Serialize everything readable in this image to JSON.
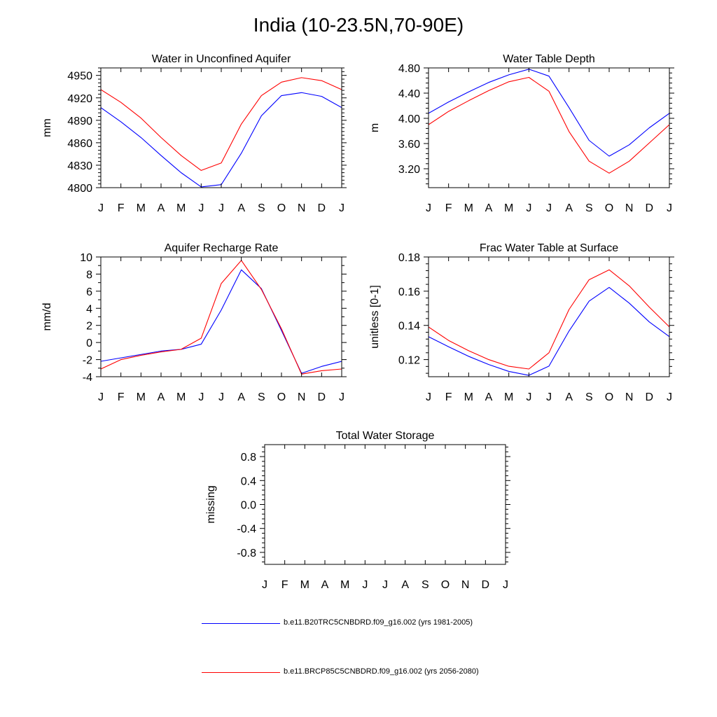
{
  "figure": {
    "title": "India (10-23.5N,70-90E)",
    "legend": [
      {
        "label": "b.e11.B20TRC5CNBDRD.f09_g16.002 (yrs 1981-2005)",
        "color": "#0000ff"
      },
      {
        "label": "b.e11.BRCP85C5CNBDRD.f09_g16.002 (yrs 2056-2080)",
        "color": "#ff0000"
      }
    ]
  },
  "chart_data": [
    {
      "type": "line",
      "title": "Water in Unconfined Aquifer",
      "xlabel": "",
      "ylabel": "mm",
      "categories": [
        "J",
        "F",
        "M",
        "A",
        "M",
        "J",
        "J",
        "A",
        "S",
        "O",
        "N",
        "D",
        "J"
      ],
      "ylim": [
        4800,
        4960
      ],
      "yticks": [
        4800,
        4830,
        4860,
        4890,
        4920,
        4950
      ],
      "yticklabels": [
        "4800",
        "4830",
        "4860",
        "4890",
        "4920",
        "4950"
      ],
      "yminor": 5,
      "series": [
        {
          "name": "b.e11.B20TRC5CNBDRD.f09_g16.002 (yrs 1981-2005)",
          "color": "#0000ff",
          "values": [
            4907,
            4888,
            4867,
            4843,
            4820,
            4801,
            4804,
            4846,
            4896,
            4923,
            4927,
            4922,
            4907
          ]
        },
        {
          "name": "b.e11.BRCP85C5CNBDRD.f09_g16.002 (yrs 2056-2080)",
          "color": "#ff0000",
          "values": [
            4931,
            4914,
            4893,
            4867,
            4843,
            4823,
            4833,
            4885,
            4923,
            4941,
            4947,
            4943,
            4931
          ]
        }
      ]
    },
    {
      "type": "line",
      "title": "Water Table Depth",
      "xlabel": "",
      "ylabel": "m",
      "categories": [
        "J",
        "F",
        "M",
        "A",
        "M",
        "J",
        "J",
        "A",
        "S",
        "O",
        "N",
        "D",
        "J"
      ],
      "ylim": [
        2.9,
        4.8
      ],
      "yticks": [
        3.2,
        3.6,
        4.0,
        4.4,
        4.8
      ],
      "yticklabels": [
        "3.20",
        "3.60",
        "4.00",
        "4.40",
        "4.80"
      ],
      "yminor": 4,
      "series": [
        {
          "name": "b.e11.B20TRC5CNBDRD.f09_g16.002 (yrs 1981-2005)",
          "color": "#0000ff",
          "values": [
            4.08,
            4.26,
            4.42,
            4.57,
            4.69,
            4.78,
            4.67,
            4.17,
            3.65,
            3.4,
            3.58,
            3.85,
            4.08
          ]
        },
        {
          "name": "b.e11.BRCP85C5CNBDRD.f09_g16.002 (yrs 2056-2080)",
          "color": "#ff0000",
          "values": [
            3.9,
            4.11,
            4.28,
            4.44,
            4.58,
            4.65,
            4.43,
            3.79,
            3.32,
            3.13,
            3.32,
            3.61,
            3.9
          ]
        }
      ]
    },
    {
      "type": "line",
      "title": "Aquifer Recharge Rate",
      "xlabel": "",
      "ylabel": "mm/d",
      "categories": [
        "J",
        "F",
        "M",
        "A",
        "M",
        "J",
        "J",
        "A",
        "S",
        "O",
        "N",
        "D",
        "J"
      ],
      "ylim": [
        -4,
        10
      ],
      "yticks": [
        -4,
        -2,
        0,
        2,
        4,
        6,
        8,
        10
      ],
      "yticklabels": [
        "-4",
        "-2",
        "0",
        "2",
        "4",
        "6",
        "8",
        "10"
      ],
      "yminor": 1,
      "series": [
        {
          "name": "b.e11.B20TRC5CNBDRD.f09_g16.002 (yrs 1981-2005)",
          "color": "#0000ff",
          "values": [
            -2.2,
            -1.8,
            -1.4,
            -1.0,
            -0.8,
            -0.2,
            3.8,
            8.5,
            6.3,
            1.4,
            -3.6,
            -2.8,
            -2.2
          ]
        },
        {
          "name": "b.e11.BRCP85C5CNBDRD.f09_g16.002 (yrs 2056-2080)",
          "color": "#ff0000",
          "values": [
            -3.1,
            -2.0,
            -1.5,
            -1.1,
            -0.8,
            0.5,
            6.9,
            9.6,
            6.2,
            1.6,
            -3.7,
            -3.3,
            -3.1
          ]
        }
      ]
    },
    {
      "type": "line",
      "title": "Frac Water Table at Surface",
      "xlabel": "",
      "ylabel": "unitless [0-1]",
      "categories": [
        "J",
        "F",
        "M",
        "A",
        "M",
        "J",
        "J",
        "A",
        "S",
        "O",
        "N",
        "D",
        "J"
      ],
      "ylim": [
        0.11,
        0.18
      ],
      "yticks": [
        0.12,
        0.14,
        0.16,
        0.18
      ],
      "yticklabels": [
        "0.12",
        "0.14",
        "0.16",
        "0.18"
      ],
      "yminor": 4,
      "series": [
        {
          "name": "b.e11.B20TRC5CNBDRD.f09_g16.002 (yrs 1981-2005)",
          "color": "#0000ff",
          "values": [
            0.1334,
            0.1275,
            0.1219,
            0.1171,
            0.1131,
            0.1108,
            0.1162,
            0.1367,
            0.1542,
            0.1622,
            0.153,
            0.142,
            0.1334
          ]
        },
        {
          "name": "b.e11.BRCP85C5CNBDRD.f09_g16.002 (yrs 2056-2080)",
          "color": "#ff0000",
          "values": [
            0.1391,
            0.1312,
            0.1252,
            0.12,
            0.1161,
            0.1145,
            0.124,
            0.1493,
            0.1667,
            0.1725,
            0.1631,
            0.1507,
            0.1391
          ]
        }
      ]
    },
    {
      "type": "line",
      "title": "Total Water Storage",
      "xlabel": "",
      "ylabel": "missing",
      "categories": [
        "J",
        "F",
        "M",
        "A",
        "M",
        "J",
        "J",
        "A",
        "S",
        "O",
        "N",
        "D",
        "J"
      ],
      "ylim": [
        -1.0,
        1.0
      ],
      "yticks": [
        -0.8,
        -0.4,
        0.0,
        0.4,
        0.8
      ],
      "yticklabels": [
        "-0.8",
        "-0.4",
        "0.0",
        "0.4",
        "0.8"
      ],
      "yminor": 4,
      "series": []
    }
  ]
}
